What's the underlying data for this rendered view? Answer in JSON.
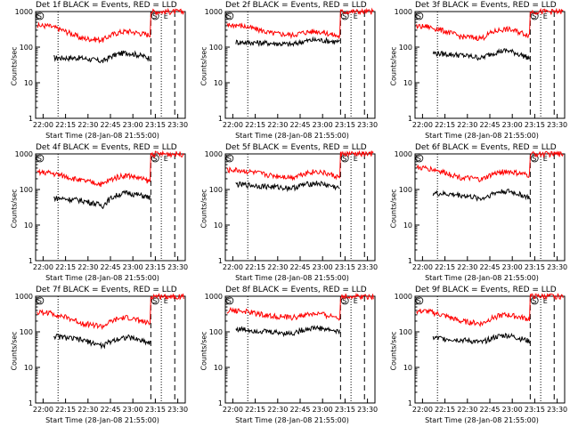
{
  "chart_data": {
    "type": "line",
    "ylabel": "Counts/sec",
    "xlabel": "Start Time (28-Jan-08 21:55:00)",
    "y_scale": "log",
    "ylim": [
      1,
      1000
    ],
    "y_tick_labels": [
      "1",
      "10",
      "100",
      "1000"
    ],
    "x_tick_labels": [
      "22:00",
      "22:15",
      "22:30",
      "22:45",
      "23:00",
      "23:15",
      "23:30"
    ],
    "xlim_minutes_after_start": [
      0,
      100
    ],
    "line_colors": {
      "events": "#000000",
      "lld": "#ff0000"
    },
    "marker_labels": {
      "start": "S",
      "end": "E"
    },
    "panels": [
      {
        "title": "Det 1f BLACK = Events, RED = LLD",
        "events": {
          "start": 50,
          "jump_at": 12,
          "flat": 50,
          "dip": 40,
          "bump": 70,
          "end": 50
        },
        "lld": {
          "start": 400,
          "flat": 180,
          "dip": 160,
          "bump": 280,
          "end": 220,
          "spike_at": 77
        },
        "marker_lines": [
          15,
          77,
          84,
          93
        ]
      },
      {
        "title": "Det 2f BLACK = Events, RED = LLD",
        "events": {
          "start": 140,
          "jump_at": 7,
          "flat": 130,
          "dip": 120,
          "bump": 160,
          "end": 140
        },
        "lld": {
          "start": 420,
          "flat": 250,
          "dip": 220,
          "bump": 280,
          "end": 200,
          "spike_at": 77
        },
        "marker_lines": [
          15,
          77,
          84,
          93
        ]
      },
      {
        "title": "Det 3f BLACK = Events, RED = LLD",
        "events": {
          "start": 70,
          "jump_at": 12,
          "flat": 60,
          "dip": 50,
          "bump": 80,
          "end": 50
        },
        "lld": {
          "start": 380,
          "flat": 200,
          "dip": 180,
          "bump": 320,
          "end": 220,
          "spike_at": 77
        },
        "marker_lines": [
          15,
          77,
          84,
          93
        ]
      },
      {
        "title": "Det 4f BLACK = Events, RED = LLD",
        "events": {
          "start": 60,
          "jump_at": 12,
          "flat": 50,
          "dip": 35,
          "bump": 80,
          "end": 60
        },
        "lld": {
          "start": 300,
          "flat": 180,
          "dip": 140,
          "bump": 250,
          "end": 170,
          "spike_at": 77
        },
        "marker_lines": [
          15,
          77,
          84,
          93
        ]
      },
      {
        "title": "Det 5f BLACK = Events, RED = LLD",
        "events": {
          "start": 140,
          "jump_at": 7,
          "flat": 120,
          "dip": 110,
          "bump": 150,
          "end": 110
        },
        "lld": {
          "start": 350,
          "flat": 250,
          "dip": 220,
          "bump": 320,
          "end": 220,
          "spike_at": 77
        },
        "marker_lines": [
          15,
          77,
          84,
          93
        ]
      },
      {
        "title": "Det 6f BLACK = Events, RED = LLD",
        "events": {
          "start": 80,
          "jump_at": 12,
          "flat": 70,
          "dip": 55,
          "bump": 90,
          "end": 60
        },
        "lld": {
          "start": 400,
          "flat": 220,
          "dip": 190,
          "bump": 320,
          "end": 250,
          "spike_at": 77
        },
        "marker_lines": [
          15,
          77,
          84,
          93
        ]
      },
      {
        "title": "Det 7f BLACK = Events, RED = LLD",
        "events": {
          "start": 80,
          "jump_at": 12,
          "flat": 60,
          "dip": 40,
          "bump": 70,
          "end": 50
        },
        "lld": {
          "start": 350,
          "flat": 180,
          "dip": 140,
          "bump": 250,
          "end": 170,
          "spike_at": 77
        },
        "marker_lines": [
          15,
          77,
          84,
          93
        ]
      },
      {
        "title": "Det 8f BLACK = Events, RED = LLD",
        "events": {
          "start": 120,
          "jump_at": 7,
          "flat": 100,
          "dip": 90,
          "bump": 130,
          "end": 100
        },
        "lld": {
          "start": 400,
          "flat": 280,
          "dip": 250,
          "bump": 320,
          "end": 250,
          "spike_at": 77
        },
        "marker_lines": [
          15,
          77,
          84,
          93
        ]
      },
      {
        "title": "Det 9f BLACK = Events, RED = LLD",
        "events": {
          "start": 70,
          "jump_at": 12,
          "flat": 60,
          "dip": 50,
          "bump": 80,
          "end": 55
        },
        "lld": {
          "start": 380,
          "flat": 200,
          "dip": 170,
          "bump": 300,
          "end": 230,
          "spike_at": 77
        },
        "marker_lines": [
          15,
          77,
          84,
          93
        ]
      }
    ]
  }
}
